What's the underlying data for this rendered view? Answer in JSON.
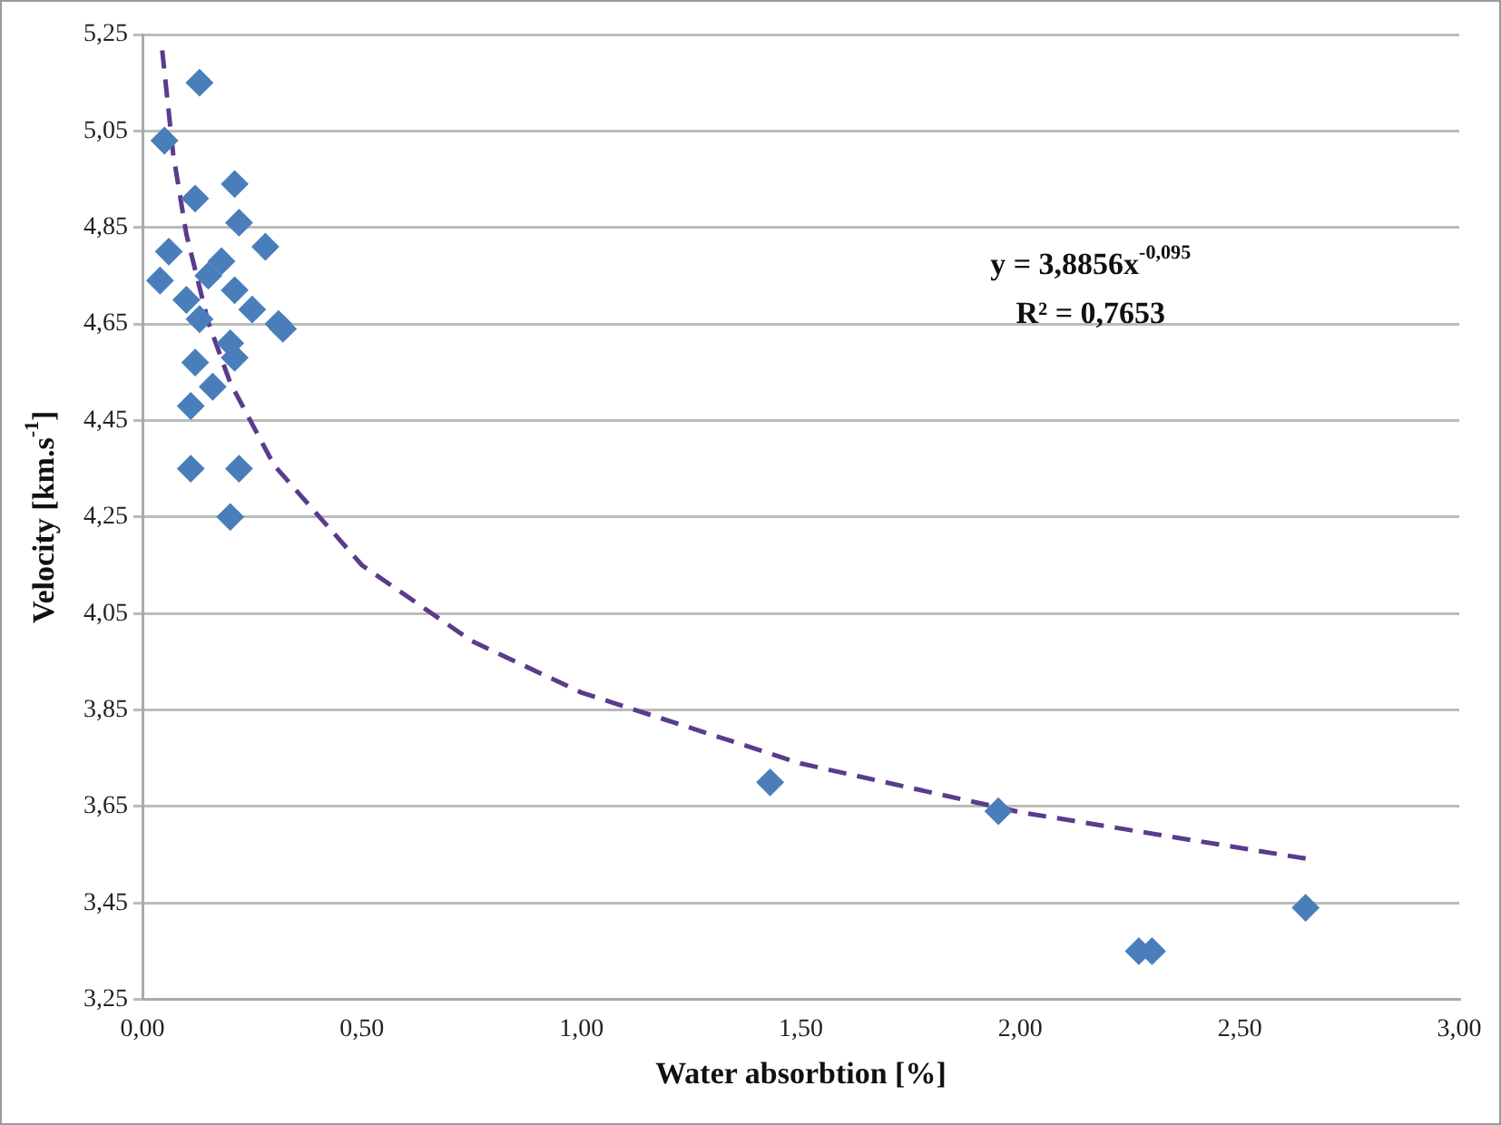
{
  "chart_data": {
    "type": "scatter",
    "xlabel": "Water absorbtion [%]",
    "ylabel": "Velocity [km.s$^{-1}$]",
    "annotations": [
      "y = 3,8856x$^{-0,095}$",
      "R² = 0,7653"
    ],
    "xlim": [
      0,
      3
    ],
    "ylim": [
      3.25,
      5.25
    ],
    "xticks": [
      {
        "value": 0,
        "label": "0,00"
      },
      {
        "value": 0.5,
        "label": "0,50"
      },
      {
        "value": 1,
        "label": "1,00"
      },
      {
        "value": 1.5,
        "label": "1,50"
      },
      {
        "value": 2,
        "label": "2,00"
      },
      {
        "value": 2.5,
        "label": "2,50"
      },
      {
        "value": 3,
        "label": "3,00"
      }
    ],
    "yticks": [
      {
        "value": 3.25,
        "label": "3,25"
      },
      {
        "value": 3.45,
        "label": "3,45"
      },
      {
        "value": 3.65,
        "label": "3,65"
      },
      {
        "value": 3.85,
        "label": "3,85"
      },
      {
        "value": 4.05,
        "label": "4,05"
      },
      {
        "value": 4.25,
        "label": "4,25"
      },
      {
        "value": 4.45,
        "label": "4,45"
      },
      {
        "value": 4.65,
        "label": "4,65"
      },
      {
        "value": 4.85,
        "label": "4,85"
      },
      {
        "value": 5.05,
        "label": "5,05"
      },
      {
        "value": 5.25,
        "label": "5,25"
      }
    ],
    "grid": "y",
    "marker": "diamond",
    "series": [
      {
        "type": "scatter",
        "color": "#4a7ebb",
        "x": [
          0.13,
          0.05,
          0.12,
          0.21,
          0.22,
          0.06,
          0.28,
          0.04,
          0.18,
          0.15,
          0.1,
          0.21,
          0.25,
          0.13,
          0.31,
          0.32,
          0.2,
          0.21,
          0.12,
          0.16,
          0.11,
          0.11,
          0.22,
          0.2,
          1.43,
          1.95,
          2.27,
          2.3,
          2.65
        ],
        "values": [
          5.15,
          5.03,
          4.91,
          4.94,
          4.86,
          4.8,
          4.81,
          4.74,
          4.78,
          4.75,
          4.7,
          4.72,
          4.68,
          4.66,
          4.65,
          4.64,
          4.61,
          4.58,
          4.57,
          4.52,
          4.48,
          4.35,
          4.35,
          4.25,
          3.7,
          3.64,
          3.35,
          3.35,
          3.44
        ]
      },
      {
        "type": "line",
        "color": "#5b3b8c",
        "line_style": "dashed",
        "marker": "none",
        "x": [
          0.045,
          0.07,
          0.1,
          0.15,
          0.2,
          0.3,
          0.5,
          0.75,
          1,
          1.5,
          2,
          2.65
        ],
        "values": [
          5.217,
          5.002,
          4.836,
          4.653,
          4.528,
          4.357,
          4.15,
          3.993,
          3.886,
          3.739,
          3.638,
          3.542
        ]
      }
    ]
  }
}
